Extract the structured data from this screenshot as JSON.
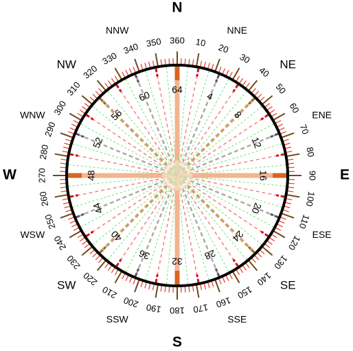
{
  "compass": {
    "points": [
      "N",
      "NNE",
      "NE",
      "ENE",
      "E",
      "ESE",
      "SE",
      "SSE",
      "S",
      "SSW",
      "SW",
      "WSW",
      "W",
      "WNW",
      "NW",
      "NNW"
    ],
    "degrees": [
      "360",
      "10",
      "20",
      "30",
      "40",
      "50",
      "60",
      "70",
      "80",
      "90",
      "100",
      "110",
      "120",
      "130",
      "140",
      "150",
      "160",
      "170",
      "180",
      "190",
      "200",
      "210",
      "220",
      "230",
      "240",
      "250",
      "260",
      "270",
      "280",
      "290",
      "300",
      "310",
      "320",
      "330",
      "340",
      "350"
    ],
    "numbers": [
      "64",
      "4",
      "8",
      "12",
      "16",
      "20",
      "24",
      "28",
      "32",
      "36",
      "40",
      "44",
      "48",
      "52",
      "56",
      "60"
    ]
  }
}
